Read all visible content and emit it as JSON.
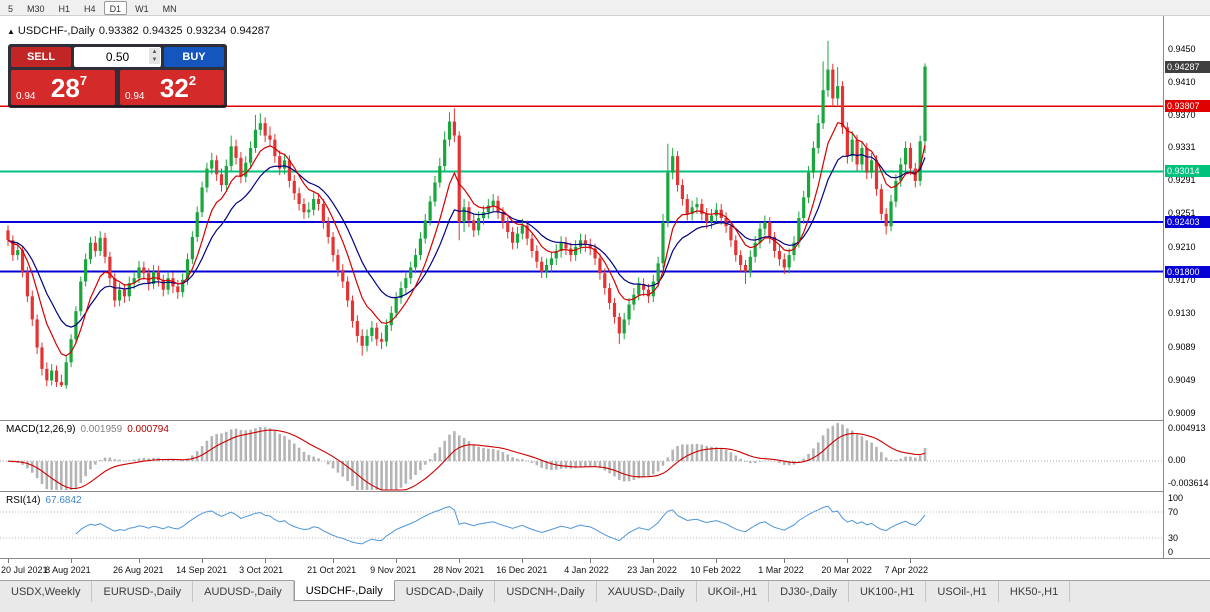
{
  "toolbar": {
    "timeframes": [
      "5",
      "M30",
      "H1",
      "H4",
      "D1",
      "W1",
      "MN"
    ],
    "active": "D1"
  },
  "header": {
    "collapse_icon": "▲",
    "title": "USDCHF-,Daily",
    "open": "0.93382",
    "high": "0.94325",
    "low": "0.93234",
    "close": "0.94287"
  },
  "trade_panel": {
    "sell_label": "SELL",
    "buy_label": "BUY",
    "lot_size": "0.50",
    "spin_up_icon": "▲",
    "spin_down_icon": "▼",
    "sell_price": {
      "small": "0.94",
      "big": "28",
      "sup": "7"
    },
    "buy_price": {
      "small": "0.94",
      "big": "32",
      "sup": "2"
    }
  },
  "price_axis": {
    "labels": [
      "0.9450",
      "0.9410",
      "0.9370",
      "0.9331",
      "0.9291",
      "0.9251",
      "0.9210",
      "0.9170",
      "0.9130",
      "0.9089",
      "0.9049",
      "0.9009"
    ],
    "current": {
      "value": "0.94287",
      "price": 0.94287,
      "color": "#3f3f3f"
    }
  },
  "hlines": [
    {
      "price": 0.93807,
      "label": "0.93807",
      "color": "#e00000",
      "width": 1.4
    },
    {
      "price": 0.93014,
      "label": "0.93014",
      "color": "#00c27d",
      "width": 2
    },
    {
      "price": 0.92403,
      "label": "0.92403",
      "color": "#0600d6",
      "width": 2
    },
    {
      "price": 0.918,
      "label": "0.91800",
      "color": "#0600d6",
      "width": 2
    }
  ],
  "chart_data": {
    "type": "candlestick",
    "symbol": "USDCHF-",
    "timeframe": "Daily",
    "ylim": [
      0.9,
      0.949
    ],
    "up_color": "#19a63d",
    "down_color": "#e23434",
    "ma": [
      {
        "period": 8,
        "color": "#d40000"
      },
      {
        "period": 16,
        "color": "#000080"
      }
    ],
    "x_tick_indices": [
      0,
      13,
      27,
      40,
      53,
      67,
      80,
      93,
      106,
      120,
      133,
      146,
      160,
      173,
      186
    ],
    "x_tick_labels": [
      "20 Jul 2021",
      "8 Aug 2021",
      "26 Aug 2021",
      "14 Sep 2021",
      "3 Oct 2021",
      "21 Oct 2021",
      "9 Nov 2021",
      "28 Nov 2021",
      "16 Dec 2021",
      "4 Jan 2022",
      "23 Jan 2022",
      "10 Feb 2022",
      "1 Mar 2022",
      "20 Mar 2022",
      "7 Apr 2022"
    ],
    "candles": [
      [
        0.923,
        0.9236,
        0.9211,
        0.9218
      ],
      [
        0.9218,
        0.9224,
        0.9193,
        0.92
      ],
      [
        0.92,
        0.9214,
        0.9194,
        0.9206
      ],
      [
        0.9206,
        0.9211,
        0.9173,
        0.918
      ],
      [
        0.918,
        0.9186,
        0.9143,
        0.915
      ],
      [
        0.915,
        0.9157,
        0.9114,
        0.9122
      ],
      [
        0.9122,
        0.9128,
        0.908,
        0.9088
      ],
      [
        0.9088,
        0.9094,
        0.9054,
        0.9062
      ],
      [
        0.9062,
        0.907,
        0.9041,
        0.9048
      ],
      [
        0.9048,
        0.9068,
        0.9042,
        0.906
      ],
      [
        0.906,
        0.9066,
        0.904,
        0.9046
      ],
      [
        0.9046,
        0.9055,
        0.904,
        0.9042
      ],
      [
        0.9042,
        0.9077,
        0.9038,
        0.907
      ],
      [
        0.907,
        0.9104,
        0.9064,
        0.9098
      ],
      [
        0.9098,
        0.9138,
        0.9092,
        0.9132
      ],
      [
        0.9132,
        0.9174,
        0.9126,
        0.9168
      ],
      [
        0.9168,
        0.9202,
        0.9162,
        0.9195
      ],
      [
        0.9195,
        0.9222,
        0.9189,
        0.9215
      ],
      [
        0.9215,
        0.9223,
        0.9198,
        0.9205
      ],
      [
        0.9205,
        0.9229,
        0.9199,
        0.9221
      ],
      [
        0.9221,
        0.9227,
        0.919,
        0.9198
      ],
      [
        0.9198,
        0.9204,
        0.9164,
        0.9172
      ],
      [
        0.9172,
        0.9178,
        0.9137,
        0.9145
      ],
      [
        0.9145,
        0.9166,
        0.9138,
        0.9158
      ],
      [
        0.9158,
        0.9165,
        0.9142,
        0.915
      ],
      [
        0.915,
        0.9174,
        0.9144,
        0.9166
      ],
      [
        0.9166,
        0.918,
        0.9159,
        0.9172
      ],
      [
        0.9172,
        0.9193,
        0.9166,
        0.9185
      ],
      [
        0.9185,
        0.9192,
        0.917,
        0.9178
      ],
      [
        0.9178,
        0.9184,
        0.9157,
        0.9165
      ],
      [
        0.9165,
        0.9188,
        0.9159,
        0.918
      ],
      [
        0.918,
        0.9187,
        0.9162,
        0.917
      ],
      [
        0.917,
        0.9176,
        0.915,
        0.9158
      ],
      [
        0.9158,
        0.918,
        0.9152,
        0.9172
      ],
      [
        0.9172,
        0.9179,
        0.9154,
        0.9162
      ],
      [
        0.9162,
        0.917,
        0.9147,
        0.9155
      ],
      [
        0.9155,
        0.9178,
        0.9149,
        0.917
      ],
      [
        0.917,
        0.9202,
        0.9164,
        0.9195
      ],
      [
        0.9195,
        0.9229,
        0.9189,
        0.9222
      ],
      [
        0.9222,
        0.9259,
        0.9216,
        0.9252
      ],
      [
        0.9252,
        0.9289,
        0.9246,
        0.9282
      ],
      [
        0.9282,
        0.9312,
        0.9276,
        0.9305
      ],
      [
        0.9305,
        0.9324,
        0.9298,
        0.9315
      ],
      [
        0.9315,
        0.9321,
        0.929,
        0.9298
      ],
      [
        0.9298,
        0.9305,
        0.9277,
        0.9285
      ],
      [
        0.9285,
        0.9316,
        0.9279,
        0.9308
      ],
      [
        0.9308,
        0.9345,
        0.9302,
        0.9332
      ],
      [
        0.9332,
        0.934,
        0.931,
        0.9318
      ],
      [
        0.9318,
        0.9325,
        0.9287,
        0.9295
      ],
      [
        0.9295,
        0.932,
        0.9288,
        0.9312
      ],
      [
        0.9312,
        0.9338,
        0.9305,
        0.933
      ],
      [
        0.933,
        0.937,
        0.9324,
        0.9352
      ],
      [
        0.9352,
        0.9372,
        0.9345,
        0.936
      ],
      [
        0.936,
        0.9367,
        0.9337,
        0.9345
      ],
      [
        0.9345,
        0.9356,
        0.9332,
        0.934
      ],
      [
        0.934,
        0.9347,
        0.9312,
        0.932
      ],
      [
        0.932,
        0.9327,
        0.9297,
        0.9305
      ],
      [
        0.9305,
        0.9323,
        0.9298,
        0.9315
      ],
      [
        0.9315,
        0.9321,
        0.9282,
        0.929
      ],
      [
        0.929,
        0.9297,
        0.9267,
        0.9275
      ],
      [
        0.9275,
        0.9282,
        0.9254,
        0.9262
      ],
      [
        0.9262,
        0.9269,
        0.9244,
        0.9252
      ],
      [
        0.9252,
        0.9264,
        0.9245,
        0.9255
      ],
      [
        0.9255,
        0.9276,
        0.9248,
        0.9268
      ],
      [
        0.9268,
        0.9275,
        0.9254,
        0.9262
      ],
      [
        0.9262,
        0.9268,
        0.9232,
        0.924
      ],
      [
        0.924,
        0.9246,
        0.9214,
        0.9222
      ],
      [
        0.9222,
        0.9228,
        0.9192,
        0.92
      ],
      [
        0.92,
        0.9207,
        0.9174,
        0.9182
      ],
      [
        0.9182,
        0.9189,
        0.916,
        0.9168
      ],
      [
        0.9168,
        0.9174,
        0.9137,
        0.9145
      ],
      [
        0.9145,
        0.9151,
        0.9112,
        0.912
      ],
      [
        0.912,
        0.9127,
        0.9094,
        0.9102
      ],
      [
        0.9102,
        0.911,
        0.9078,
        0.909
      ],
      [
        0.909,
        0.911,
        0.9083,
        0.9102
      ],
      [
        0.9102,
        0.912,
        0.9095,
        0.9112
      ],
      [
        0.9112,
        0.9118,
        0.909,
        0.9098
      ],
      [
        0.9098,
        0.9106,
        0.9086,
        0.9095
      ],
      [
        0.9095,
        0.9122,
        0.9089,
        0.9115
      ],
      [
        0.9115,
        0.9138,
        0.9108,
        0.913
      ],
      [
        0.913,
        0.9155,
        0.9124,
        0.9148
      ],
      [
        0.9148,
        0.9168,
        0.9141,
        0.916
      ],
      [
        0.916,
        0.918,
        0.9153,
        0.9172
      ],
      [
        0.9172,
        0.9192,
        0.9165,
        0.9185
      ],
      [
        0.9185,
        0.9208,
        0.9178,
        0.92
      ],
      [
        0.92,
        0.9228,
        0.9194,
        0.922
      ],
      [
        0.922,
        0.925,
        0.9214,
        0.9242
      ],
      [
        0.9242,
        0.9272,
        0.9236,
        0.9265
      ],
      [
        0.9265,
        0.9296,
        0.9259,
        0.9288
      ],
      [
        0.9288,
        0.9318,
        0.9282,
        0.9308
      ],
      [
        0.9308,
        0.935,
        0.9302,
        0.934
      ],
      [
        0.934,
        0.9373,
        0.9332,
        0.9362
      ],
      [
        0.9362,
        0.9378,
        0.9337,
        0.9345
      ],
      [
        0.9345,
        0.935,
        0.9218,
        0.924
      ],
      [
        0.924,
        0.9268,
        0.9228,
        0.9258
      ],
      [
        0.9258,
        0.9265,
        0.9234,
        0.9242
      ],
      [
        0.9242,
        0.925,
        0.9222,
        0.923
      ],
      [
        0.923,
        0.9253,
        0.9224,
        0.9245
      ],
      [
        0.9245,
        0.926,
        0.9237,
        0.9252
      ],
      [
        0.9252,
        0.9268,
        0.9244,
        0.926
      ],
      [
        0.926,
        0.9274,
        0.9252,
        0.9266
      ],
      [
        0.9266,
        0.9272,
        0.9244,
        0.9252
      ],
      [
        0.9252,
        0.9258,
        0.9232,
        0.924
      ],
      [
        0.924,
        0.9246,
        0.922,
        0.9228
      ],
      [
        0.9228,
        0.9234,
        0.9207,
        0.9215
      ],
      [
        0.9215,
        0.9234,
        0.9208,
        0.9226
      ],
      [
        0.9226,
        0.9244,
        0.9219,
        0.9236
      ],
      [
        0.9236,
        0.9242,
        0.9212,
        0.922
      ],
      [
        0.922,
        0.9226,
        0.9197,
        0.9205
      ],
      [
        0.9205,
        0.9212,
        0.9184,
        0.9192
      ],
      [
        0.9192,
        0.9198,
        0.9172,
        0.918
      ],
      [
        0.918,
        0.9196,
        0.9172,
        0.9188
      ],
      [
        0.9188,
        0.9204,
        0.918,
        0.9196
      ],
      [
        0.9196,
        0.9213,
        0.9188,
        0.9205
      ],
      [
        0.9205,
        0.9223,
        0.9197,
        0.9215
      ],
      [
        0.9215,
        0.9222,
        0.92,
        0.9208
      ],
      [
        0.9208,
        0.9215,
        0.9192,
        0.92
      ],
      [
        0.92,
        0.9218,
        0.9193,
        0.921
      ],
      [
        0.921,
        0.9226,
        0.9202,
        0.9218
      ],
      [
        0.9218,
        0.9225,
        0.9204,
        0.9212
      ],
      [
        0.9212,
        0.922,
        0.92,
        0.9208
      ],
      [
        0.9208,
        0.9214,
        0.9188,
        0.9196
      ],
      [
        0.9196,
        0.9202,
        0.917,
        0.9178
      ],
      [
        0.9178,
        0.9184,
        0.9152,
        0.916
      ],
      [
        0.916,
        0.9166,
        0.9134,
        0.9142
      ],
      [
        0.9142,
        0.9148,
        0.9117,
        0.9125
      ],
      [
        0.9125,
        0.913,
        0.9092,
        0.9105
      ],
      [
        0.9105,
        0.913,
        0.9098,
        0.9122
      ],
      [
        0.9122,
        0.9148,
        0.9115,
        0.914
      ],
      [
        0.914,
        0.916,
        0.9133,
        0.9152
      ],
      [
        0.9152,
        0.9173,
        0.9145,
        0.9165
      ],
      [
        0.9165,
        0.9172,
        0.915,
        0.9158
      ],
      [
        0.9158,
        0.9165,
        0.9142,
        0.915
      ],
      [
        0.915,
        0.9176,
        0.9143,
        0.9168
      ],
      [
        0.9168,
        0.9198,
        0.9161,
        0.919
      ],
      [
        0.919,
        0.925,
        0.9184,
        0.924
      ],
      [
        0.924,
        0.9335,
        0.9234,
        0.93
      ],
      [
        0.93,
        0.933,
        0.9292,
        0.932
      ],
      [
        0.932,
        0.9326,
        0.9277,
        0.9285
      ],
      [
        0.9285,
        0.9292,
        0.926,
        0.9268
      ],
      [
        0.9268,
        0.9274,
        0.9242,
        0.925
      ],
      [
        0.925,
        0.9266,
        0.9242,
        0.9258
      ],
      [
        0.9258,
        0.927,
        0.925,
        0.9262
      ],
      [
        0.9262,
        0.9268,
        0.9242,
        0.925
      ],
      [
        0.925,
        0.9257,
        0.9232,
        0.924
      ],
      [
        0.924,
        0.9256,
        0.9232,
        0.9248
      ],
      [
        0.9248,
        0.9263,
        0.924,
        0.9255
      ],
      [
        0.9255,
        0.9262,
        0.9237,
        0.9245
      ],
      [
        0.9245,
        0.9252,
        0.9227,
        0.9235
      ],
      [
        0.9235,
        0.9241,
        0.921,
        0.9218
      ],
      [
        0.9218,
        0.9224,
        0.9192,
        0.92
      ],
      [
        0.92,
        0.9206,
        0.918,
        0.9188
      ],
      [
        0.9188,
        0.9194,
        0.9165,
        0.918
      ],
      [
        0.918,
        0.9206,
        0.9173,
        0.9198
      ],
      [
        0.9198,
        0.9223,
        0.9191,
        0.9215
      ],
      [
        0.9215,
        0.924,
        0.9208,
        0.9232
      ],
      [
        0.9232,
        0.9248,
        0.9224,
        0.924
      ],
      [
        0.924,
        0.9246,
        0.9214,
        0.9222
      ],
      [
        0.9222,
        0.9228,
        0.9197,
        0.9205
      ],
      [
        0.9205,
        0.9212,
        0.9187,
        0.9195
      ],
      [
        0.9195,
        0.9202,
        0.9177,
        0.9185
      ],
      [
        0.9185,
        0.9208,
        0.9178,
        0.92
      ],
      [
        0.92,
        0.9223,
        0.9193,
        0.9215
      ],
      [
        0.9215,
        0.9253,
        0.9209,
        0.9245
      ],
      [
        0.9245,
        0.9278,
        0.9238,
        0.927
      ],
      [
        0.927,
        0.9308,
        0.9263,
        0.93
      ],
      [
        0.93,
        0.9338,
        0.9293,
        0.933
      ],
      [
        0.933,
        0.937,
        0.9323,
        0.936
      ],
      [
        0.936,
        0.9435,
        0.9353,
        0.94
      ],
      [
        0.94,
        0.946,
        0.9392,
        0.9425
      ],
      [
        0.9425,
        0.9432,
        0.938,
        0.939
      ],
      [
        0.939,
        0.9428,
        0.9382,
        0.9405
      ],
      [
        0.9405,
        0.9411,
        0.9347,
        0.9355
      ],
      [
        0.9355,
        0.9361,
        0.9311,
        0.932
      ],
      [
        0.932,
        0.935,
        0.9313,
        0.934
      ],
      [
        0.934,
        0.9346,
        0.9302,
        0.931
      ],
      [
        0.931,
        0.9338,
        0.9303,
        0.933
      ],
      [
        0.933,
        0.9336,
        0.9292,
        0.93
      ],
      [
        0.93,
        0.9324,
        0.9293,
        0.9315
      ],
      [
        0.9315,
        0.9321,
        0.9272,
        0.928
      ],
      [
        0.928,
        0.9286,
        0.9242,
        0.925
      ],
      [
        0.925,
        0.9257,
        0.9225,
        0.9235
      ],
      [
        0.9235,
        0.9273,
        0.9229,
        0.9265
      ],
      [
        0.9265,
        0.9298,
        0.9258,
        0.929
      ],
      [
        0.929,
        0.9318,
        0.9283,
        0.931
      ],
      [
        0.931,
        0.9338,
        0.9302,
        0.933
      ],
      [
        0.933,
        0.9336,
        0.9297,
        0.9305
      ],
      [
        0.9305,
        0.9312,
        0.9282,
        0.929
      ],
      [
        0.929,
        0.9345,
        0.9284,
        0.9338
      ],
      [
        0.93382,
        0.94325,
        0.93234,
        0.94287
      ]
    ],
    "macd": {
      "label": "MACD(12,26,9)",
      "value_main": "0.001959",
      "value_signal": "0.000794",
      "fast": 12,
      "slow": 26,
      "signal": 9,
      "ylim": [
        -0.003614,
        0.004913
      ],
      "axis_labels": [
        "0.004913",
        "0.00",
        "-0.003614"
      ],
      "hist_color": "#b4b4b4",
      "signal_color": "#cc0000"
    },
    "rsi": {
      "label": "RSI(14)",
      "value": "67.6842",
      "period": 14,
      "levels": [
        70,
        30
      ],
      "axis_labels": [
        "100",
        "70",
        "30",
        "0"
      ],
      "color": "#4f96d8"
    }
  },
  "tabs": {
    "items": [
      "USDX,Weekly",
      "EURUSD-,Daily",
      "AUDUSD-,Daily",
      "USDCHF-,Daily",
      "USDCAD-,Daily",
      "USDCNH-,Daily",
      "XAUUSD-,Daily",
      "UKOil-,H1",
      "DJ30-,Daily",
      "UK100-,H1",
      "USOil-,H1",
      "HK50-,H1"
    ],
    "active_index": 3
  }
}
